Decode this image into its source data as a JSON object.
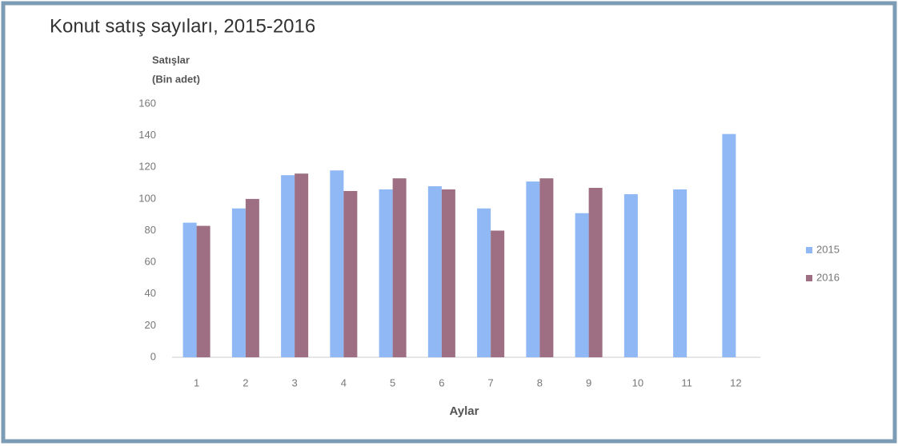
{
  "chart_data": {
    "type": "bar",
    "title": "Konut satış sayıları, 2015-2016",
    "y_label": [
      "Satışlar",
      "(Bin adet)"
    ],
    "x_label": "Aylar",
    "categories": [
      "1",
      "2",
      "3",
      "4",
      "5",
      "6",
      "7",
      "8",
      "9",
      "10",
      "11",
      "12"
    ],
    "series": [
      {
        "name": "2015",
        "color": "#8fb8f5",
        "values": [
          85,
          94,
          115,
          118,
          106,
          108,
          94,
          111,
          91,
          103,
          106,
          141
        ]
      },
      {
        "name": "2016",
        "color": "#9e6f82",
        "values": [
          83,
          100,
          116,
          105,
          113,
          106,
          80,
          113,
          107,
          null,
          null,
          null
        ]
      }
    ],
    "ylim": [
      0,
      160
    ],
    "yticks": [
      0,
      20,
      40,
      60,
      80,
      100,
      120,
      140,
      160
    ],
    "grid": false,
    "legend": "right"
  }
}
